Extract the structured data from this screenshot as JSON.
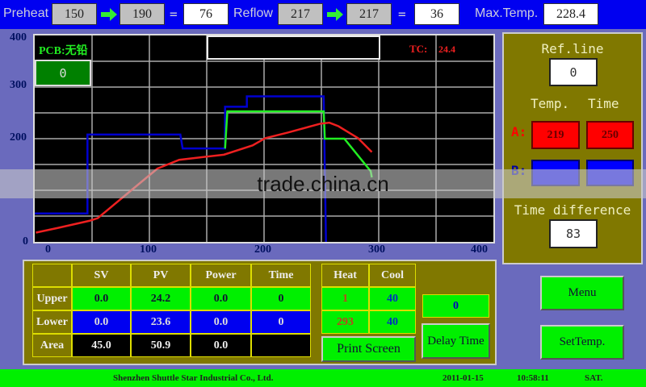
{
  "topbar": {
    "preheat_label": "Preheat",
    "preheat_from": "150",
    "preheat_to": "190",
    "preheat_eq": "=",
    "preheat_time": "76",
    "reflow_label": "Reflow",
    "reflow_from": "217",
    "reflow_to": "217",
    "reflow_eq": "=",
    "reflow_time": "36",
    "maxtemp_label": "Max.Temp.",
    "maxtemp_value": "228.4",
    "arrow_icon": "right-arrow-icon",
    "arrow_color": "#33ee33"
  },
  "chart_panel": {
    "pcb_label": "PCB:无铅",
    "counter": "0",
    "tc_label": "TC:",
    "tc_value": "24.4",
    "title_box": ""
  },
  "chart_data": {
    "type": "line",
    "xlim": [
      0,
      400
    ],
    "ylim": [
      0,
      400
    ],
    "grid": true,
    "x_ticks": [
      "0",
      "100",
      "200",
      "300",
      "400"
    ],
    "y_ticks": [
      "400",
      "300",
      "200",
      "0"
    ],
    "series": [
      {
        "color": "#0000d0",
        "points": [
          [
            0,
            55
          ],
          [
            46,
            55
          ],
          [
            46,
            208
          ],
          [
            127,
            208
          ],
          [
            129,
            181
          ],
          [
            166,
            181
          ],
          [
            166,
            262
          ],
          [
            185,
            262
          ],
          [
            185,
            282
          ],
          [
            252,
            282
          ],
          [
            254,
            0
          ]
        ]
      },
      {
        "color": "#22ee22",
        "points": [
          [
            166,
            181
          ],
          [
            168,
            253
          ],
          [
            252,
            253
          ],
          [
            253,
            200
          ],
          [
            270,
            200
          ],
          [
            293,
            137
          ],
          [
            294,
            125
          ]
        ]
      },
      {
        "color": "#ee2020",
        "points": [
          [
            1,
            18
          ],
          [
            20,
            27
          ],
          [
            48,
            41
          ],
          [
            55,
            46
          ],
          [
            75,
            83
          ],
          [
            107,
            142
          ],
          [
            126,
            159
          ],
          [
            165,
            169
          ],
          [
            190,
            187
          ],
          [
            201,
            201
          ],
          [
            221,
            212
          ],
          [
            249,
            229
          ],
          [
            257,
            231
          ],
          [
            265,
            224
          ],
          [
            276,
            209
          ],
          [
            282,
            201
          ],
          [
            294,
            174
          ]
        ]
      }
    ]
  },
  "right_panel": {
    "ref_line_label": "Ref.line",
    "ref_line_value": "0",
    "temp_header": "Temp.",
    "time_header": "Time",
    "a_label": "A:",
    "a_temp": "219",
    "a_time": "250",
    "b_label": "B:",
    "time_diff_label": "Time difference",
    "time_diff_value": "83"
  },
  "table": {
    "headers": [
      "",
      "SV",
      "PV",
      "Power",
      "Time"
    ],
    "rows": [
      {
        "label": "Upper",
        "values": [
          "0.0",
          "24.2",
          "0.0",
          "0"
        ]
      },
      {
        "label": "Lower",
        "values": [
          "0.0",
          "23.6",
          "0.0",
          "0"
        ]
      },
      {
        "label": "Area",
        "values": [
          "45.0",
          "50.9",
          "0.0",
          ""
        ]
      }
    ],
    "heat_cool_headers": [
      "Heat",
      "Cool"
    ],
    "heat_cool_rows": [
      [
        "1",
        "40"
      ],
      [
        "293",
        "40"
      ]
    ]
  },
  "buttons": {
    "print_screen": "Print Screen",
    "delay_value": "0",
    "delay_time": "Delay Time",
    "menu": "Menu",
    "set_temp": "SetTemp."
  },
  "footer": {
    "company": "Shenzhen Shuttle Star Industrial Co., Ltd.",
    "date": "2011-01-15",
    "time": "10:58:11",
    "day": "SAT."
  },
  "watermark": "trade.china.cn"
}
